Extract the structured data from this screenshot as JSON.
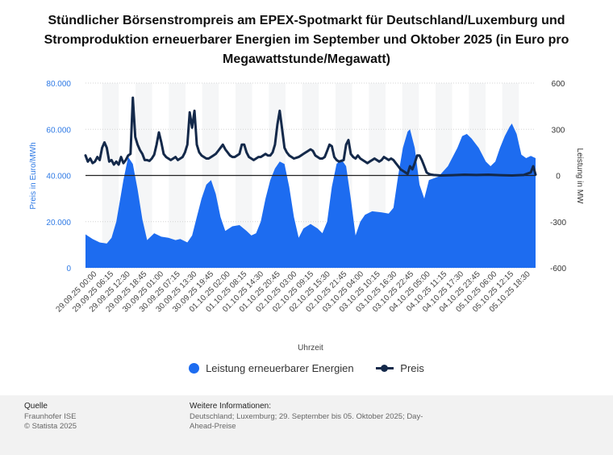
{
  "title": "Stündlicher Börsenstrompreis am EPEX-Spotmarkt für Deutschland/Luxemburg und Stromproduktion erneuerbarer Energien im September und Oktober 2025 (in Euro pro Megawattstunde/Megawatt)",
  "colors": {
    "area": "#1d6cf0",
    "line": "#14294a",
    "band": "#f5f6f7",
    "axis_left": "#2f7ae5"
  },
  "chart_data": {
    "type": "area",
    "xlabel": "Uhrzeit",
    "ylabel_left": "Preis in Euro/MWh",
    "ylabel_right": "Leistung in MW",
    "ylim_left": [
      0,
      80000
    ],
    "ylim_right": [
      -600,
      600
    ],
    "yticks_left": [
      "0",
      "20.000",
      "40.000",
      "60.000",
      "80.000"
    ],
    "yticks_right": [
      "-600",
      "-300",
      "0",
      "300",
      "600"
    ],
    "x_tick_labels": [
      "29.09.25 00:00",
      "29.09.25 06:15",
      "29.09.25 12:30",
      "29.09.25 18:45",
      "30.09.25 01:00",
      "30.09.25 07:15",
      "30.09.25 13:30",
      "30.09.25 19:45",
      "01.10.25 02:00",
      "01.10.25 08:15",
      "01.10.25 14:30",
      "01.10.25 20:45",
      "02.10.25 03:00",
      "02.10.25 09:15",
      "02.10.25 15:30",
      "02.10.25 21:45",
      "03.10.25 04:00",
      "03.10.25 10:15",
      "03.10.25 16:30",
      "03.10.25 22:45",
      "04.10.25 05:00",
      "04.10.25 11:15",
      "04.10.25 17:30",
      "04.10.25 23:45",
      "05.10.25 06:00",
      "05.10.25 12:15",
      "05.10.25 18:30"
    ],
    "legend_position": "bottom",
    "series": [
      {
        "name": "Leistung erneuerbarer Energien",
        "axis": "left",
        "points": [
          [
            0,
            14500
          ],
          [
            3,
            12500
          ],
          [
            6,
            11000
          ],
          [
            9,
            10500
          ],
          [
            11,
            13000
          ],
          [
            13,
            20000
          ],
          [
            15,
            32000
          ],
          [
            16,
            38000
          ],
          [
            18,
            48000
          ],
          [
            20,
            45000
          ],
          [
            22,
            34000
          ],
          [
            24,
            21000
          ],
          [
            26,
            12000
          ],
          [
            29,
            15000
          ],
          [
            32,
            13500
          ],
          [
            35,
            13000
          ],
          [
            38,
            12000
          ],
          [
            40,
            12500
          ],
          [
            43,
            11000
          ],
          [
            45,
            14000
          ],
          [
            47,
            22000
          ],
          [
            49,
            30000
          ],
          [
            51,
            36000
          ],
          [
            53,
            38000
          ],
          [
            55,
            32000
          ],
          [
            57,
            22000
          ],
          [
            59,
            16000
          ],
          [
            62,
            18000
          ],
          [
            65,
            18500
          ],
          [
            68,
            16000
          ],
          [
            70,
            14000
          ],
          [
            72,
            15000
          ],
          [
            74,
            20000
          ],
          [
            76,
            30000
          ],
          [
            78,
            38000
          ],
          [
            80,
            43000
          ],
          [
            82,
            46000
          ],
          [
            84,
            45000
          ],
          [
            86,
            35000
          ],
          [
            88,
            22000
          ],
          [
            90,
            13000
          ],
          [
            92,
            17000
          ],
          [
            95,
            19000
          ],
          [
            98,
            17000
          ],
          [
            100,
            15000
          ],
          [
            102,
            20000
          ],
          [
            104,
            35000
          ],
          [
            106,
            45000
          ],
          [
            108,
            47000
          ],
          [
            110,
            44000
          ],
          [
            112,
            30000
          ],
          [
            114,
            14000
          ],
          [
            116,
            20000
          ],
          [
            118,
            23000
          ],
          [
            121,
            24500
          ],
          [
            125,
            24000
          ],
          [
            128,
            23500
          ],
          [
            130,
            26000
          ],
          [
            132,
            40000
          ],
          [
            134,
            52000
          ],
          [
            136,
            59000
          ],
          [
            137,
            60000
          ],
          [
            139,
            52000
          ],
          [
            141,
            36000
          ],
          [
            143,
            30000
          ],
          [
            145,
            38000
          ],
          [
            149,
            39500
          ],
          [
            153,
            44000
          ],
          [
            157,
            52000
          ],
          [
            159,
            57000
          ],
          [
            161,
            58000
          ],
          [
            163,
            56000
          ],
          [
            166,
            52000
          ],
          [
            169,
            46000
          ],
          [
            171,
            44000
          ],
          [
            173,
            46000
          ],
          [
            175,
            52000
          ],
          [
            177,
            57000
          ],
          [
            179,
            61000
          ],
          [
            180,
            62500
          ],
          [
            182,
            58000
          ],
          [
            184,
            49000
          ],
          [
            186,
            47500
          ],
          [
            188,
            48500
          ],
          [
            190,
            47500
          ]
        ]
      },
      {
        "name": "Preis",
        "axis": "right",
        "points": [
          [
            0,
            130
          ],
          [
            1,
            90
          ],
          [
            2,
            110
          ],
          [
            3,
            80
          ],
          [
            4,
            90
          ],
          [
            5,
            120
          ],
          [
            6,
            100
          ],
          [
            7,
            180
          ],
          [
            8,
            215
          ],
          [
            9,
            180
          ],
          [
            10,
            90
          ],
          [
            11,
            100
          ],
          [
            12,
            70
          ],
          [
            13,
            90
          ],
          [
            14,
            70
          ],
          [
            15,
            120
          ],
          [
            16,
            80
          ],
          [
            17,
            100
          ],
          [
            18,
            130
          ],
          [
            19,
            140
          ],
          [
            20,
            505
          ],
          [
            21,
            250
          ],
          [
            22,
            200
          ],
          [
            23,
            165
          ],
          [
            24,
            140
          ],
          [
            25,
            100
          ],
          [
            26,
            100
          ],
          [
            27,
            95
          ],
          [
            28,
            110
          ],
          [
            29,
            135
          ],
          [
            30,
            200
          ],
          [
            31,
            280
          ],
          [
            32,
            215
          ],
          [
            33,
            140
          ],
          [
            34,
            120
          ],
          [
            35,
            110
          ],
          [
            36,
            100
          ],
          [
            37,
            110
          ],
          [
            38,
            120
          ],
          [
            39,
            100
          ],
          [
            40,
            110
          ],
          [
            41,
            120
          ],
          [
            42,
            150
          ],
          [
            43,
            200
          ],
          [
            44,
            410
          ],
          [
            45,
            310
          ],
          [
            46,
            420
          ],
          [
            47,
            200
          ],
          [
            48,
            150
          ],
          [
            49,
            130
          ],
          [
            50,
            120
          ],
          [
            51,
            110
          ],
          [
            52,
            110
          ],
          [
            53,
            120
          ],
          [
            54,
            130
          ],
          [
            55,
            140
          ],
          [
            56,
            160
          ],
          [
            57,
            180
          ],
          [
            58,
            200
          ],
          [
            59,
            170
          ],
          [
            60,
            150
          ],
          [
            61,
            130
          ],
          [
            62,
            120
          ],
          [
            63,
            120
          ],
          [
            64,
            130
          ],
          [
            65,
            140
          ],
          [
            66,
            200
          ],
          [
            67,
            200
          ],
          [
            68,
            150
          ],
          [
            69,
            120
          ],
          [
            70,
            110
          ],
          [
            71,
            100
          ],
          [
            72,
            110
          ],
          [
            73,
            120
          ],
          [
            74,
            120
          ],
          [
            75,
            130
          ],
          [
            76,
            140
          ],
          [
            77,
            130
          ],
          [
            78,
            130
          ],
          [
            79,
            150
          ],
          [
            80,
            200
          ],
          [
            81,
            330
          ],
          [
            82,
            420
          ],
          [
            83,
            300
          ],
          [
            84,
            180
          ],
          [
            85,
            150
          ],
          [
            86,
            130
          ],
          [
            87,
            120
          ],
          [
            88,
            110
          ],
          [
            89,
            115
          ],
          [
            90,
            120
          ],
          [
            91,
            130
          ],
          [
            92,
            140
          ],
          [
            93,
            150
          ],
          [
            94,
            160
          ],
          [
            95,
            170
          ],
          [
            96,
            160
          ],
          [
            97,
            130
          ],
          [
            98,
            120
          ],
          [
            99,
            110
          ],
          [
            100,
            110
          ],
          [
            101,
            120
          ],
          [
            102,
            160
          ],
          [
            103,
            200
          ],
          [
            104,
            190
          ],
          [
            105,
            120
          ],
          [
            106,
            100
          ],
          [
            107,
            90
          ],
          [
            108,
            95
          ],
          [
            109,
            100
          ],
          [
            110,
            200
          ],
          [
            111,
            230
          ],
          [
            112,
            140
          ],
          [
            113,
            120
          ],
          [
            114,
            110
          ],
          [
            115,
            130
          ],
          [
            116,
            110
          ],
          [
            117,
            100
          ],
          [
            118,
            90
          ],
          [
            119,
            80
          ],
          [
            120,
            90
          ],
          [
            121,
            100
          ],
          [
            122,
            110
          ],
          [
            123,
            100
          ],
          [
            124,
            90
          ],
          [
            125,
            100
          ],
          [
            126,
            120
          ],
          [
            127,
            110
          ],
          [
            128,
            100
          ],
          [
            129,
            110
          ],
          [
            130,
            100
          ],
          [
            131,
            80
          ],
          [
            132,
            60
          ],
          [
            133,
            40
          ],
          [
            134,
            30
          ],
          [
            135,
            20
          ],
          [
            136,
            10
          ],
          [
            137,
            60
          ],
          [
            138,
            40
          ],
          [
            139,
            80
          ],
          [
            140,
            130
          ],
          [
            141,
            130
          ],
          [
            142,
            100
          ],
          [
            143,
            60
          ],
          [
            144,
            20
          ],
          [
            145,
            10
          ],
          [
            146,
            5
          ],
          [
            147,
            3
          ],
          [
            150,
            0
          ],
          [
            155,
            2
          ],
          [
            160,
            5
          ],
          [
            165,
            3
          ],
          [
            170,
            5
          ],
          [
            175,
            2
          ],
          [
            180,
            0
          ],
          [
            185,
            3
          ],
          [
            188,
            20
          ],
          [
            189,
            60
          ],
          [
            190,
            5
          ]
        ]
      }
    ],
    "notes": "x values are 1-hour steps starting 29.09.25 00:00"
  },
  "legend": {
    "area_label": "Leistung erneuerbarer Energien",
    "line_label": "Preis"
  },
  "footer": {
    "source_heading": "Quelle",
    "source_lines": [
      "Fraunhofer ISE",
      "© Statista 2025"
    ],
    "info_heading": "Weitere Informationen:",
    "info_text": "Deutschland; Luxemburg; 29. September bis 05. Oktober 2025; Day-Ahead-Preise"
  }
}
